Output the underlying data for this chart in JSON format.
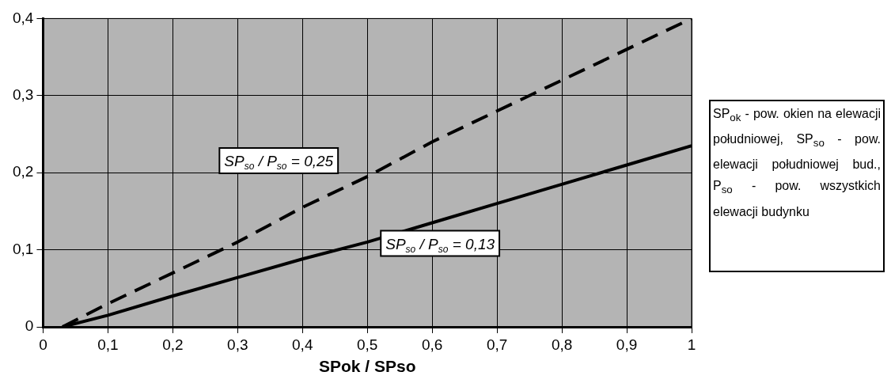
{
  "chart_data": {
    "type": "line",
    "xlabel": "SPok / SPso",
    "x": [
      0.03,
      0.1,
      0.2,
      0.3,
      0.4,
      0.5,
      0.6,
      0.7,
      0.8,
      0.9,
      1
    ],
    "series": [
      {
        "name": "SP$_{so}$ / P$_{so}$ = 0,25",
        "color": "#000000",
        "line_style": "dashed",
        "values": [
          0,
          0.03,
          0.07,
          0.11,
          0.155,
          0.195,
          0.24,
          0.28,
          0.32,
          0.36,
          0.4
        ]
      },
      {
        "name": "SP$_{so}$ / P$_{so}$ = 0,13",
        "color": "#000000",
        "line_style": "solid",
        "values": [
          0,
          0.015,
          0.04,
          0.064,
          0.088,
          0.11,
          0.135,
          0.16,
          0.185,
          0.21,
          0.235
        ]
      }
    ],
    "xlim": [
      0,
      1
    ],
    "xticks": [
      {
        "value": 0,
        "label": "0"
      },
      {
        "value": 0.1,
        "label": "0,1"
      },
      {
        "value": 0.2,
        "label": "0,2"
      },
      {
        "value": 0.3,
        "label": "0,3"
      },
      {
        "value": 0.4,
        "label": "0,4"
      },
      {
        "value": 0.5,
        "label": "0,5"
      },
      {
        "value": 0.6,
        "label": "0,6"
      },
      {
        "value": 0.7,
        "label": "0,7"
      },
      {
        "value": 0.8,
        "label": "0,8"
      },
      {
        "value": 0.9,
        "label": "0,9"
      },
      {
        "value": 1,
        "label": "1"
      }
    ],
    "ylim": [
      0,
      0.4
    ],
    "yticks": [
      {
        "value": 0,
        "label": "0"
      },
      {
        "value": 0.1,
        "label": "0,1"
      },
      {
        "value": 0.2,
        "label": "0,2"
      },
      {
        "value": 0.3,
        "label": "0,3"
      },
      {
        "value": 0.4,
        "label": "0,4"
      }
    ],
    "grid": true,
    "legend": false,
    "marker": "none",
    "annotations": [
      "SP$_{ok}$ - pow. okien na elewacji południowej, SP$_{so}$ - pow. elewacji południowej bud., P$_{so}$ - pow. wszystkich elewacji budynku"
    ]
  }
}
